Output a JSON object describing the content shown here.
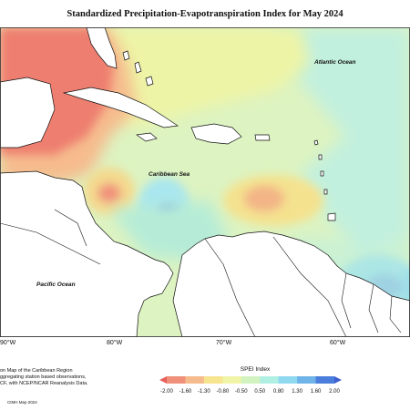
{
  "title": "Standardized Precipitation-Evapotranspiration Index for May 2024",
  "map": {
    "ocean_labels": [
      "Atlantic Ocean",
      "Caribbean Sea",
      "Pacific Ocean"
    ],
    "longitude_labels": [
      "90°W",
      "80°W",
      "70°W",
      "60°W"
    ],
    "colors": {
      "land": "#ffffff",
      "coast": "#111111"
    }
  },
  "footer": {
    "note_lines": [
      "on Map of the Caribbean Region",
      "ggregating station based observations,",
      "CF, with NCEP/NCAR Reanalysis Data."
    ],
    "credit": "CIMH May-2024"
  },
  "legend": {
    "title": "SPEI Index",
    "ticks": [
      "-2.00",
      "-1.60",
      "-1.30",
      "-0.80",
      "-0.50",
      "0.50",
      "0.80",
      "1.30",
      "1.60",
      "2.00"
    ],
    "colors": [
      "#e8625c",
      "#f1907a",
      "#f6bb8d",
      "#f7e48f",
      "#eff4a7",
      "#d2f3c0",
      "#b1efe3",
      "#8fd8ef",
      "#6fb3e8",
      "#4a7ddc",
      "#3f5fcf"
    ]
  }
}
